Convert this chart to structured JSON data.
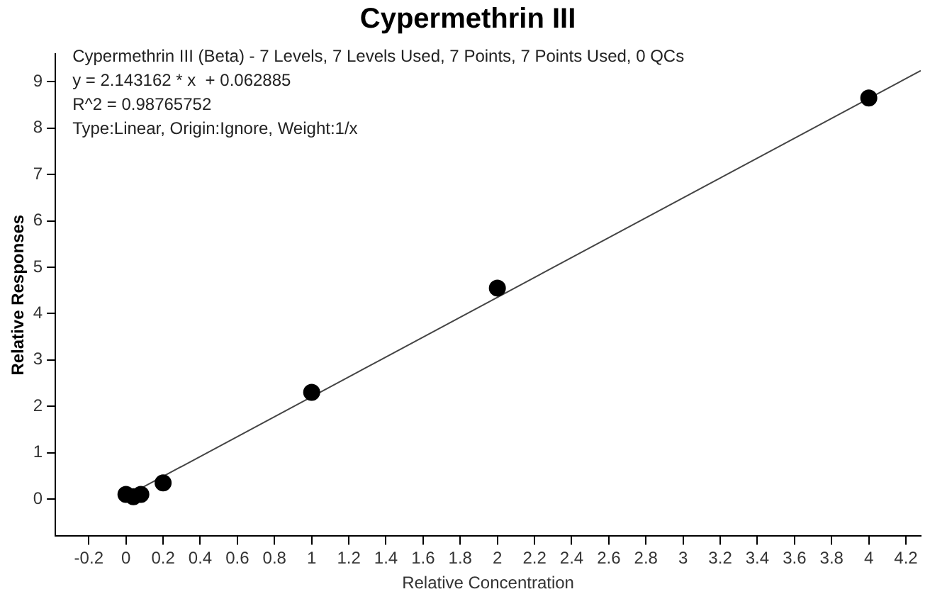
{
  "chart_data": {
    "type": "scatter",
    "title": "Cypermethrin III",
    "xlabel": "Relative Concentration",
    "ylabel": "Relative Responses",
    "annotations": [
      "Cypermethrin III (Beta) - 7 Levels, 7 Levels Used, 7 Points, 7 Points Used, 0 QCs",
      "y = 2.143162 * x  + 0.062885",
      "R^2 = 0.98765752",
      "Type:Linear, Origin:Ignore, Weight:1/x"
    ],
    "series": [
      {
        "type": "scatter",
        "color": "#000000",
        "x": [
          0,
          0.04,
          0.08,
          0.2,
          1,
          2,
          4
        ],
        "values": [
          0.1,
          0.05,
          0.1,
          0.35,
          2.3,
          4.55,
          8.65
        ]
      },
      {
        "type": "line",
        "color": "#444444",
        "marker": "none",
        "x": [
          0,
          4.28
        ],
        "values": [
          0.06,
          9.24
        ]
      }
    ],
    "marker": "circle",
    "grid": false,
    "legend": false,
    "xlim": [
      -0.38,
      4.28
    ],
    "xticks": [
      -0.2,
      0,
      0.2,
      0.4,
      0.6,
      0.8,
      1,
      1.2,
      1.4,
      1.6,
      1.8,
      2,
      2.2,
      2.4,
      2.6,
      2.8,
      3,
      3.2,
      3.4,
      3.6,
      3.8,
      4,
      4.2
    ],
    "ylim": [
      -0.8,
      9.6
    ],
    "yticks": [
      0,
      1,
      2,
      3,
      4,
      5,
      6,
      7,
      8,
      9
    ]
  }
}
